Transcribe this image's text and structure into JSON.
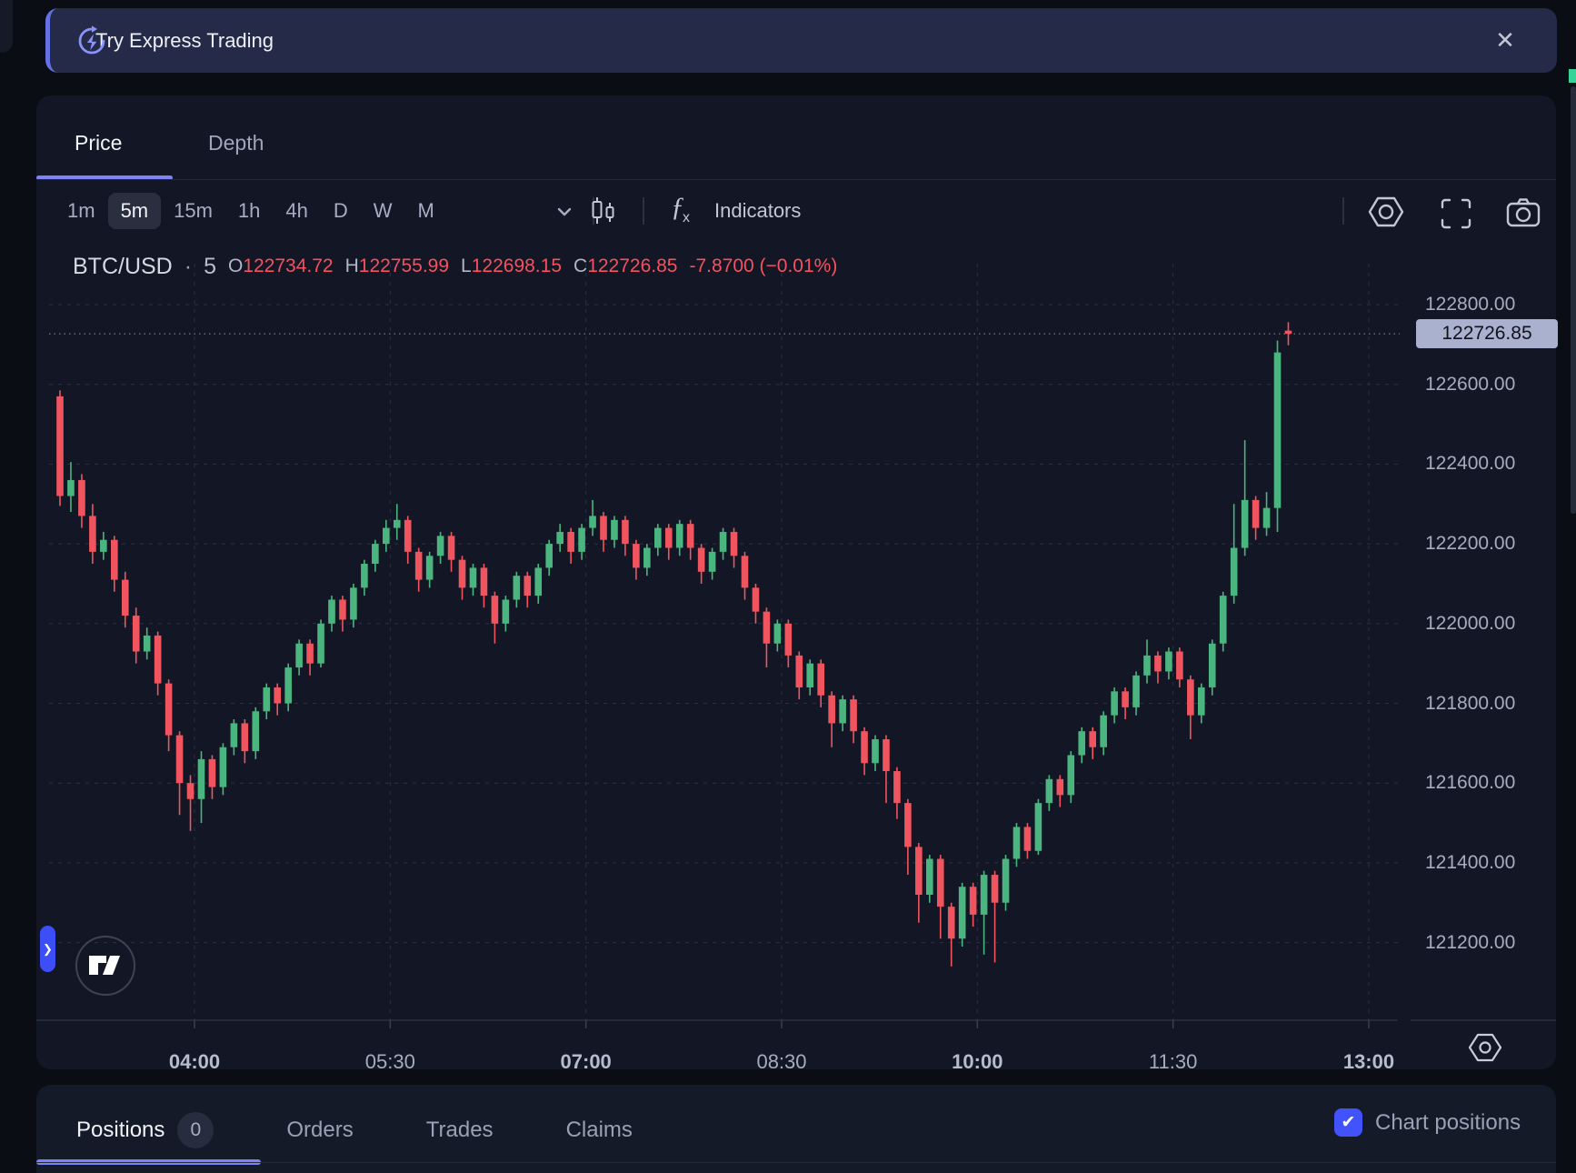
{
  "banner": {
    "label": "Try Express Trading",
    "close_glyph": "✕"
  },
  "tabs": {
    "items": [
      {
        "label": "Price",
        "active": true
      },
      {
        "label": "Depth",
        "active": false
      }
    ]
  },
  "toolbar": {
    "timeframes": [
      {
        "label": "1m",
        "active": false
      },
      {
        "label": "5m",
        "active": true
      },
      {
        "label": "15m",
        "active": false
      },
      {
        "label": "1h",
        "active": false
      },
      {
        "label": "4h",
        "active": false
      },
      {
        "label": "D",
        "active": false
      },
      {
        "label": "W",
        "active": false
      },
      {
        "label": "M",
        "active": false
      }
    ],
    "indicators_label": "Indicators"
  },
  "legend": {
    "symbol": "BTC/USD",
    "separator": "·",
    "interval": "5",
    "o_label": "O",
    "o_value": "122734.72",
    "h_label": "H",
    "h_value": "122755.99",
    "l_label": "L",
    "l_value": "122698.15",
    "c_label": "C",
    "c_value": "122726.85",
    "change": "-7.8700 (−0.01%)"
  },
  "chart_data": {
    "type": "candlestick",
    "title": "BTC/USD 5-minute chart",
    "interval_minutes": 5,
    "last_price": 122726.85,
    "last_price_label": "122726.85",
    "y_axis": {
      "ticks": [
        {
          "price": 122800,
          "label": "122800.00"
        },
        {
          "price": 122600,
          "label": "122600.00"
        },
        {
          "price": 122400,
          "label": "122400.00"
        },
        {
          "price": 122200,
          "label": "122200.00"
        },
        {
          "price": 122000,
          "label": "122000.00"
        },
        {
          "price": 121800,
          "label": "121800.00"
        },
        {
          "price": 121600,
          "label": "121600.00"
        },
        {
          "price": 121400,
          "label": "121400.00"
        },
        {
          "price": 121200,
          "label": "121200.00"
        }
      ]
    },
    "x_axis": {
      "labels": [
        {
          "label": "04:00",
          "bold": true
        },
        {
          "label": "05:30",
          "bold": false
        },
        {
          "label": "07:00",
          "bold": true
        },
        {
          "label": "08:30",
          "bold": false
        },
        {
          "label": "10:00",
          "bold": true
        },
        {
          "label": "11:30",
          "bold": false
        },
        {
          "label": "13:00",
          "bold": true
        }
      ]
    },
    "colors": {
      "up": "#4bb580",
      "down": "#f0545e",
      "grid": "#2b3040",
      "last_price_line": "#8b90a4",
      "tag_bg": "#a9b1ce"
    },
    "candles": [
      [
        122570,
        122585,
        122295,
        122320
      ],
      [
        122320,
        122405,
        122280,
        122360
      ],
      [
        122360,
        122375,
        122240,
        122270
      ],
      [
        122270,
        122300,
        122150,
        122180
      ],
      [
        122180,
        122230,
        122160,
        122210
      ],
      [
        122210,
        122220,
        122080,
        122110
      ],
      [
        122110,
        122130,
        121990,
        122020
      ],
      [
        122020,
        122040,
        121900,
        121930
      ],
      [
        121930,
        121990,
        121910,
        121970
      ],
      [
        121970,
        121980,
        121820,
        121850
      ],
      [
        121850,
        121860,
        121680,
        121720
      ],
      [
        121720,
        121730,
        121520,
        121600
      ],
      [
        121600,
        121620,
        121480,
        121560
      ],
      [
        121560,
        121680,
        121500,
        121660
      ],
      [
        121660,
        121670,
        121560,
        121590
      ],
      [
        121590,
        121700,
        121570,
        121690
      ],
      [
        121690,
        121760,
        121670,
        121750
      ],
      [
        121750,
        121760,
        121650,
        121680
      ],
      [
        121680,
        121790,
        121660,
        121780
      ],
      [
        121780,
        121850,
        121760,
        121840
      ],
      [
        121840,
        121850,
        121770,
        121800
      ],
      [
        121800,
        121900,
        121780,
        121890
      ],
      [
        121890,
        121960,
        121870,
        121950
      ],
      [
        121950,
        121960,
        121870,
        121900
      ],
      [
        121900,
        122010,
        121890,
        122000
      ],
      [
        122000,
        122070,
        121980,
        122060
      ],
      [
        122060,
        122070,
        121980,
        122010
      ],
      [
        122010,
        122100,
        121990,
        122090
      ],
      [
        122090,
        122160,
        122070,
        122150
      ],
      [
        122150,
        122210,
        122130,
        122200
      ],
      [
        122200,
        122260,
        122180,
        122240
      ],
      [
        122240,
        122300,
        122210,
        122260
      ],
      [
        122260,
        122270,
        122150,
        122180
      ],
      [
        122180,
        122190,
        122080,
        122110
      ],
      [
        122110,
        122180,
        122090,
        122170
      ],
      [
        122170,
        122230,
        122150,
        122220
      ],
      [
        122220,
        122230,
        122130,
        122160
      ],
      [
        122160,
        122170,
        122060,
        122090
      ],
      [
        122090,
        122150,
        122070,
        122140
      ],
      [
        122140,
        122150,
        122040,
        122070
      ],
      [
        122070,
        122080,
        121950,
        122000
      ],
      [
        122000,
        122070,
        121980,
        122060
      ],
      [
        122060,
        122130,
        122040,
        122120
      ],
      [
        122120,
        122130,
        122040,
        122070
      ],
      [
        122070,
        122150,
        122050,
        122140
      ],
      [
        122140,
        122210,
        122120,
        122200
      ],
      [
        122200,
        122250,
        122180,
        122230
      ],
      [
        122230,
        122240,
        122150,
        122180
      ],
      [
        122180,
        122250,
        122160,
        122240
      ],
      [
        122240,
        122310,
        122220,
        122270
      ],
      [
        122270,
        122280,
        122180,
        122210
      ],
      [
        122210,
        122270,
        122190,
        122260
      ],
      [
        122260,
        122270,
        122170,
        122200
      ],
      [
        122200,
        122210,
        122110,
        122140
      ],
      [
        122140,
        122200,
        122120,
        122190
      ],
      [
        122190,
        122250,
        122170,
        122240
      ],
      [
        122240,
        122250,
        122160,
        122190
      ],
      [
        122190,
        122260,
        122170,
        122250
      ],
      [
        122250,
        122260,
        122160,
        122190
      ],
      [
        122190,
        122200,
        122100,
        122130
      ],
      [
        122130,
        122190,
        122110,
        122180
      ],
      [
        122180,
        122240,
        122160,
        122230
      ],
      [
        122230,
        122240,
        122140,
        122170
      ],
      [
        122170,
        122180,
        122060,
        122090
      ],
      [
        122090,
        122100,
        122000,
        122030
      ],
      [
        122030,
        122040,
        121890,
        121950
      ],
      [
        121950,
        122010,
        121930,
        122000
      ],
      [
        122000,
        122010,
        121890,
        121920
      ],
      [
        121920,
        121930,
        121810,
        121840
      ],
      [
        121840,
        121910,
        121820,
        121900
      ],
      [
        121900,
        121910,
        121790,
        121820
      ],
      [
        121820,
        121830,
        121690,
        121750
      ],
      [
        121750,
        121820,
        121730,
        121810
      ],
      [
        121810,
        121820,
        121700,
        121730
      ],
      [
        121730,
        121740,
        121620,
        121650
      ],
      [
        121650,
        121720,
        121630,
        121710
      ],
      [
        121710,
        121720,
        121550,
        121630
      ],
      [
        121630,
        121640,
        121510,
        121550
      ],
      [
        121550,
        121560,
        121370,
        121440
      ],
      [
        121440,
        121450,
        121250,
        121320
      ],
      [
        121320,
        121420,
        121300,
        121410
      ],
      [
        121410,
        121420,
        121210,
        121290
      ],
      [
        121290,
        121300,
        121140,
        121210
      ],
      [
        121210,
        121350,
        121190,
        121340
      ],
      [
        121340,
        121350,
        121240,
        121270
      ],
      [
        121270,
        121380,
        121170,
        121370
      ],
      [
        121370,
        121380,
        121150,
        121300
      ],
      [
        121300,
        121420,
        121280,
        121410
      ],
      [
        121410,
        121500,
        121390,
        121490
      ],
      [
        121490,
        121500,
        121410,
        121430
      ],
      [
        121430,
        121560,
        121420,
        121550
      ],
      [
        121550,
        121620,
        121530,
        121610
      ],
      [
        121610,
        121620,
        121540,
        121570
      ],
      [
        121570,
        121680,
        121550,
        121670
      ],
      [
        121670,
        121740,
        121650,
        121730
      ],
      [
        121730,
        121740,
        121660,
        121690
      ],
      [
        121690,
        121780,
        121670,
        121770
      ],
      [
        121770,
        121840,
        121750,
        121830
      ],
      [
        121830,
        121840,
        121760,
        121790
      ],
      [
        121790,
        121880,
        121770,
        121870
      ],
      [
        121870,
        121960,
        121850,
        121920
      ],
      [
        121920,
        121930,
        121850,
        121880
      ],
      [
        121880,
        121940,
        121860,
        121930
      ],
      [
        121930,
        121940,
        121840,
        121860
      ],
      [
        121860,
        121870,
        121710,
        121770
      ],
      [
        121770,
        121850,
        121750,
        121840
      ],
      [
        121840,
        121960,
        121820,
        121950
      ],
      [
        121950,
        122080,
        121930,
        122070
      ],
      [
        122070,
        122300,
        122050,
        122190
      ],
      [
        122190,
        122460,
        122170,
        122310
      ],
      [
        122310,
        122320,
        122210,
        122240
      ],
      [
        122240,
        122330,
        122220,
        122290
      ],
      [
        122290,
        122710,
        122230,
        122680
      ],
      [
        122734.72,
        122755.99,
        122698.15,
        122726.85
      ]
    ]
  },
  "bottom": {
    "tabs": [
      {
        "label": "Positions",
        "badge": "0",
        "active": true
      },
      {
        "label": "Orders",
        "active": false
      },
      {
        "label": "Trades",
        "active": false
      },
      {
        "label": "Claims",
        "active": false
      }
    ],
    "chart_positions_label": "Chart positions",
    "chart_positions_checked": true
  },
  "icons": {
    "banner": "express-trading-refresh-bolt-icon",
    "close": "close-icon",
    "timeframe_menu": "chevron-down-icon",
    "chart_style": "candles-icon",
    "indicators": "fx-icon",
    "settings": "gear-icon",
    "fullscreen": "fullscreen-icon",
    "screenshot": "camera-icon",
    "axis_settings": "gear-icon",
    "logo": "tradingview-logo",
    "pane_handle": "chevron-right-icon",
    "checkbox": "checkmark-icon"
  }
}
